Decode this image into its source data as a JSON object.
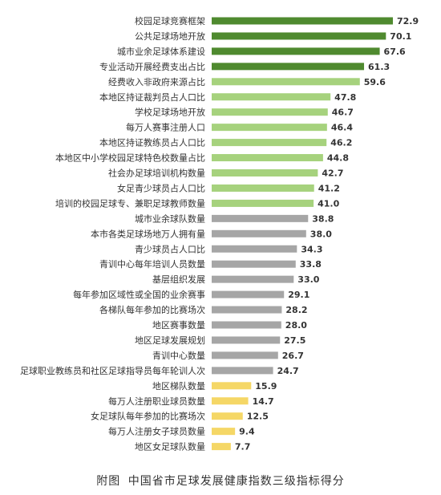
{
  "chart_data": {
    "type": "bar",
    "orientation": "horizontal",
    "categories": [
      "校园足球竞赛框架",
      "公共足球场地开放",
      "城市业余足球体系建设",
      "专业活动开展经费支出占比",
      "经费收入非政府来源占比",
      "本地区持证裁判员占人口比",
      "学校足球场地开放",
      "每万人赛事注册人口",
      "本地区持证教练员占人口比",
      "本地区中小学校园足球特色校数量占比",
      "社会办足球培训机构数量",
      "女足青少球员占人口比",
      "培训的校园足球专、兼职足球教师数量",
      "城市业余球队数量",
      "本市各类足球场地万人拥有量",
      "青少球员占人口比",
      "青训中心每年培训人员数量",
      "基层组织发展",
      "每年参加区域性或全国的业余赛事",
      "各梯队每年参加的比赛场次",
      "地区赛事数量",
      "地区足球发展规划",
      "青训中心数量",
      "足球职业教练员和社区足球指导员每年轮训人次",
      "地区梯队数量",
      "每万人注册职业球员数量",
      "女足球队每年参加的比赛场次",
      "每万人注册女子球员数量",
      "地区女足球队数量"
    ],
    "values": [
      72.9,
      70.1,
      67.6,
      61.3,
      59.6,
      47.8,
      46.7,
      46.4,
      46.2,
      44.8,
      42.7,
      41.2,
      41.0,
      38.8,
      38.0,
      34.3,
      33.8,
      33.0,
      29.1,
      28.2,
      28.0,
      27.5,
      26.7,
      24.7,
      15.9,
      14.7,
      12.5,
      9.4,
      7.7
    ],
    "value_labels": [
      "72.9",
      "70.1",
      "67.6",
      "61.3",
      "59.6",
      "47.8",
      "46.7",
      "46.4",
      "46.2",
      "44.8",
      "42.7",
      "41.2",
      "41.0",
      "38.8",
      "38.0",
      "34.3",
      "33.8",
      "33.0",
      "29.1",
      "28.2",
      "28.0",
      "27.5",
      "26.7",
      "24.7",
      "15.9",
      "14.7",
      "12.5",
      "9.4",
      "7.7"
    ],
    "color_groups": [
      "dark",
      "dark",
      "dark",
      "dark",
      "light",
      "light",
      "light",
      "light",
      "light",
      "light",
      "light",
      "light",
      "light",
      "gray",
      "gray",
      "gray",
      "gray",
      "gray",
      "gray",
      "gray",
      "gray",
      "gray",
      "gray",
      "gray",
      "yellow",
      "yellow",
      "yellow",
      "yellow",
      "yellow"
    ],
    "colors": {
      "dark": "#4f8a2f",
      "light": "#a6d27d",
      "gray": "#a6a6a6",
      "yellow": "#f5d766"
    },
    "xlim": [
      0,
      75
    ],
    "axes_visible": false,
    "grid": false,
    "legend": "none"
  },
  "caption": {
    "prefix": "附图",
    "text": "中国省市足球发展健康指数三级指标得分"
  }
}
